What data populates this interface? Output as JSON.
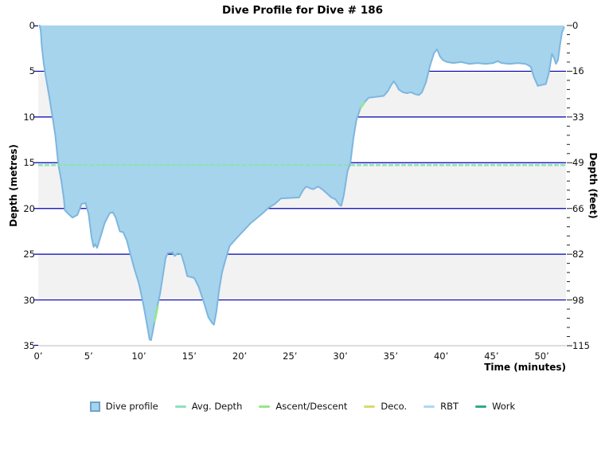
{
  "title": "Dive Profile for Dive # 186",
  "axes": {
    "x": {
      "label": "Time (minutes)",
      "tick_labels": [
        "0’",
        "5’",
        "10’",
        "15’",
        "20’",
        "25’",
        "30’",
        "35’",
        "40’",
        "45’",
        "50’"
      ],
      "tick_minutes": [
        0,
        5,
        10,
        15,
        20,
        25,
        30,
        35,
        40,
        45,
        50
      ],
      "max_minutes": 52.4
    },
    "y_left": {
      "label": "Depth (metres)",
      "tick_labels": [
        "0",
        "5",
        "10",
        "15",
        "20",
        "25",
        "30",
        "35"
      ],
      "tick_metres": [
        0,
        5,
        10,
        15,
        20,
        25,
        30,
        35
      ],
      "max_metres": 35
    },
    "y_right": {
      "label": "Depth (feet)",
      "tick_labels": [
        "0",
        "16",
        "33",
        "49",
        "66",
        "82",
        "98",
        "115"
      ],
      "tick_metres": [
        0,
        5,
        10,
        15,
        20,
        25,
        30,
        35
      ],
      "minor_tick_every_metres": 1
    }
  },
  "legend": [
    {
      "label": "Dive profile",
      "shape": "square",
      "color": "#A6D4EC",
      "border": "#6FA3CC"
    },
    {
      "label": "Avg. Depth",
      "shape": "line",
      "color": "#8FE0BC"
    },
    {
      "label": "Ascent/Descent",
      "shape": "line",
      "color": "#97E689"
    },
    {
      "label": "Deco.",
      "shape": "line",
      "color": "#D8DC6A"
    },
    {
      "label": "RBT",
      "shape": "line",
      "color": "#ABDAF2"
    },
    {
      "label": "Work",
      "shape": "line",
      "color": "#2FAA8D"
    }
  ],
  "colors": {
    "area_fill": "#A6D4EC",
    "area_stroke": "#7DB6E0",
    "gridline": "#0000B4",
    "band_gray": "#F2F2F2",
    "band_white": "#FFFFFF",
    "axis_line": "#BBBBBB",
    "tick": "#222222",
    "avg_depth": "#8FE0BC",
    "ascent": "#97E689",
    "text": "#000000"
  },
  "chart_data": {
    "type": "area",
    "title": "Dive Profile for Dive # 186",
    "xlabel": "Time (minutes)",
    "ylabel_left": "Depth (metres)",
    "ylabel_right": "Depth (feet)",
    "x_unit": "minutes",
    "y_unit": "metres",
    "xlim": [
      0,
      52.4
    ],
    "ylim_metres": [
      0,
      35
    ],
    "ylim_feet": [
      0,
      115
    ],
    "grid": "horizontal-navy-every-5m",
    "legend_position": "bottom-center",
    "avg_depth_m": 15.25,
    "max_depth_m": 34.4,
    "dive_number": "186",
    "series": [
      {
        "name": "Dive profile",
        "points_time_depth": [
          [
            0.15,
            0
          ],
          [
            0.25,
            0.6
          ],
          [
            0.35,
            2.2
          ],
          [
            0.55,
            4.2
          ],
          [
            0.75,
            5.6
          ],
          [
            1.1,
            7.8
          ],
          [
            1.45,
            10.2
          ],
          [
            1.7,
            12
          ],
          [
            2,
            15.2
          ],
          [
            2.3,
            17
          ],
          [
            2.55,
            19
          ],
          [
            2.65,
            20.2
          ],
          [
            3,
            20.6
          ],
          [
            3.4,
            21
          ],
          [
            3.9,
            20.7
          ],
          [
            4.3,
            19.5
          ],
          [
            4.7,
            19.4
          ],
          [
            5,
            20.6
          ],
          [
            5.3,
            23.2
          ],
          [
            5.5,
            24.2
          ],
          [
            5.65,
            23.9
          ],
          [
            5.85,
            24.3
          ],
          [
            6.1,
            23.4
          ],
          [
            6.6,
            21.6
          ],
          [
            7.1,
            20.5
          ],
          [
            7.4,
            20.4
          ],
          [
            7.7,
            21
          ],
          [
            8.1,
            22.5
          ],
          [
            8.45,
            22.6
          ],
          [
            8.8,
            23.5
          ],
          [
            9.2,
            25.2
          ],
          [
            9.6,
            26.8
          ],
          [
            10,
            28.2
          ],
          [
            10.35,
            30
          ],
          [
            10.65,
            31.8
          ],
          [
            10.9,
            33.3
          ],
          [
            11.05,
            34.3
          ],
          [
            11.2,
            34.4
          ],
          [
            11.35,
            33.6
          ],
          [
            11.55,
            32.4
          ],
          [
            11.85,
            30.6
          ],
          [
            12.1,
            29.3
          ],
          [
            12.4,
            27.2
          ],
          [
            12.65,
            25.4
          ],
          [
            12.85,
            24.9
          ],
          [
            13.35,
            24.8
          ],
          [
            13.55,
            25.2
          ],
          [
            13.85,
            24.9
          ],
          [
            14.2,
            25
          ],
          [
            14.5,
            26.1
          ],
          [
            14.8,
            27.4
          ],
          [
            15.5,
            27.6
          ],
          [
            15.95,
            28.6
          ],
          [
            16.4,
            30.1
          ],
          [
            16.9,
            31.9
          ],
          [
            17.25,
            32.5
          ],
          [
            17.45,
            32.7
          ],
          [
            17.7,
            31.2
          ],
          [
            17.95,
            29
          ],
          [
            18.25,
            27
          ],
          [
            18.6,
            25.6
          ],
          [
            19,
            24.1
          ],
          [
            19.9,
            23
          ],
          [
            21.1,
            21.6
          ],
          [
            22.2,
            20.6
          ],
          [
            22.9,
            19.9
          ],
          [
            23.5,
            19.5
          ],
          [
            24.1,
            18.9
          ],
          [
            25.9,
            18.8
          ],
          [
            26.3,
            18
          ],
          [
            26.6,
            17.6
          ],
          [
            27,
            17.8
          ],
          [
            27.3,
            17.9
          ],
          [
            27.8,
            17.6
          ],
          [
            28.3,
            18
          ],
          [
            29.1,
            18.8
          ],
          [
            29.5,
            19
          ],
          [
            29.9,
            19.6
          ],
          [
            30.1,
            19.7
          ],
          [
            30.35,
            18.5
          ],
          [
            30.7,
            16
          ],
          [
            31,
            15
          ],
          [
            31.3,
            12.3
          ],
          [
            31.6,
            10.3
          ],
          [
            32,
            9
          ],
          [
            32.4,
            8.4
          ],
          [
            32.8,
            7.9
          ],
          [
            34.3,
            7.7
          ],
          [
            34.7,
            7.2
          ],
          [
            35,
            6.6
          ],
          [
            35.3,
            6.1
          ],
          [
            35.5,
            6.4
          ],
          [
            35.8,
            7
          ],
          [
            36.2,
            7.3
          ],
          [
            36.6,
            7.4
          ],
          [
            37,
            7.3
          ],
          [
            37.4,
            7.5
          ],
          [
            37.8,
            7.6
          ],
          [
            38.1,
            7.3
          ],
          [
            38.5,
            6.2
          ],
          [
            38.9,
            4.4
          ],
          [
            39.3,
            3
          ],
          [
            39.6,
            2.6
          ],
          [
            39.9,
            3.4
          ],
          [
            40.2,
            3.8
          ],
          [
            40.6,
            4
          ],
          [
            41.2,
            4.1
          ],
          [
            42,
            4
          ],
          [
            42.8,
            4.2
          ],
          [
            43.6,
            4.1
          ],
          [
            44.4,
            4.2
          ],
          [
            45.2,
            4.1
          ],
          [
            45.6,
            3.9
          ],
          [
            46,
            4.1
          ],
          [
            46.8,
            4.2
          ],
          [
            47.6,
            4.1
          ],
          [
            48.4,
            4.2
          ],
          [
            48.9,
            4.5
          ],
          [
            49.2,
            5.6
          ],
          [
            49.6,
            6.6
          ],
          [
            50,
            6.5
          ],
          [
            50.4,
            6.4
          ],
          [
            50.7,
            5.2
          ],
          [
            51,
            3.1
          ],
          [
            51.2,
            3.5
          ],
          [
            51.4,
            4.2
          ],
          [
            51.6,
            3.8
          ],
          [
            51.8,
            2.2
          ],
          [
            52,
            0.8
          ],
          [
            52.2,
            0.2
          ]
        ]
      },
      {
        "name": "Avg. Depth",
        "style": "dashed-horizontal-line",
        "value_m": 15.25
      },
      {
        "name": "Ascent/Descent",
        "style": "line-segments-on-profile",
        "segments_time_depth": [
          [
            [
              11.57,
              32.3
            ],
            [
              11.87,
              30.7
            ]
          ],
          [
            [
              32.05,
              8.95
            ],
            [
              32.38,
              8.45
            ]
          ]
        ]
      }
    ]
  }
}
